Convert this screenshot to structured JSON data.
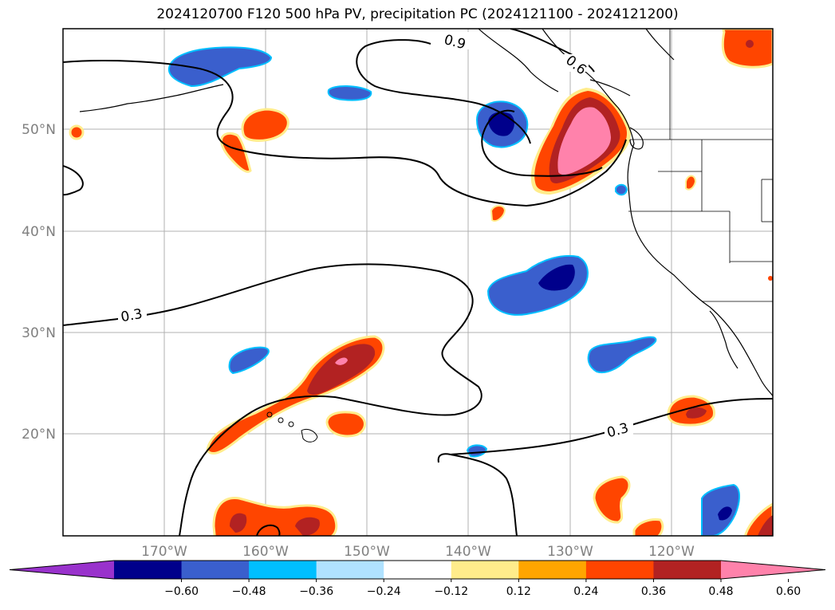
{
  "title": "2024120700 F120 500 hPa PV, precipitation PC (2024121100 - 2024121200)",
  "lat_labels": [
    "50°N",
    "40°N",
    "30°N",
    "20°N"
  ],
  "lon_labels": [
    "170°W",
    "160°W",
    "150°W",
    "140°W",
    "130°W",
    "120°W"
  ],
  "contour_labels": [
    "0.9",
    "0.6",
    "0.3",
    "0.3"
  ],
  "colorbar": {
    "ticks": [
      "−0.60",
      "−0.48",
      "−0.36",
      "−0.24",
      "−0.12",
      "0.12",
      "0.24",
      "0.36",
      "0.48",
      "0.60"
    ],
    "colors": [
      "#9932cc",
      "#00008b",
      "#3a5fcd",
      "#00bfff",
      "#b0e2ff",
      "#ffffff",
      "#ffec8b",
      "#ffa500",
      "#ff4500",
      "#b22222",
      "#ff82ab"
    ]
  },
  "colors": {
    "strong_pos": "#b22222",
    "mid_pos": "#ff4500",
    "weak_pos": "#ffa500",
    "faint_pos": "#ffec8b",
    "peak_pos": "#ff82ab",
    "strong_neg": "#00008b",
    "mid_neg": "#3a5fcd",
    "weak_neg": "#00bfff"
  }
}
